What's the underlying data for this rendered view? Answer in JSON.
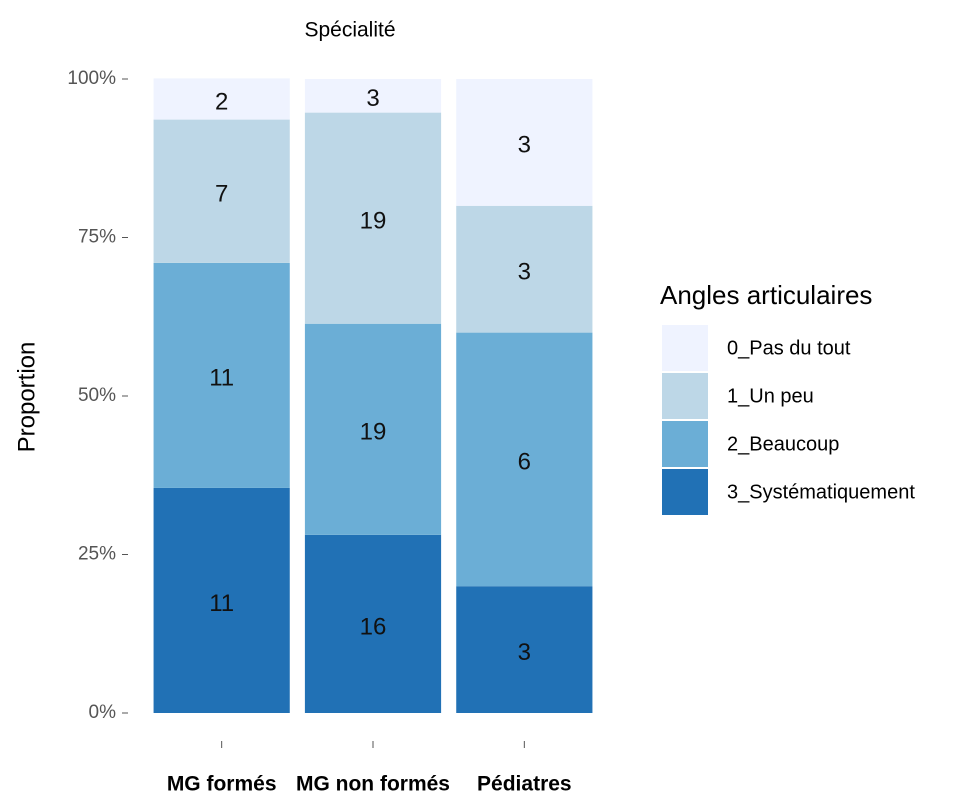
{
  "chart_data": {
    "type": "stacked-bar-100",
    "title": "Spécialité",
    "y_label": "Proportion",
    "legend_title": "Angles articulaires",
    "legend": "right",
    "categories": [
      "MG formés",
      "MG non formés",
      "Pédiatres"
    ],
    "series": [
      {
        "name": "0_Pas du tout",
        "color": "#eff3ff",
        "values": [
          6.5,
          5.3,
          20
        ],
        "counts": [
          2,
          3,
          3
        ]
      },
      {
        "name": "1_Un peu",
        "color": "#bdd7e7",
        "values": [
          22.6,
          33.3,
          20
        ],
        "counts": [
          7,
          19,
          3
        ]
      },
      {
        "name": "2_Beaucoup",
        "color": "#6baed6",
        "values": [
          35.5,
          33.3,
          40
        ],
        "counts": [
          11,
          19,
          6
        ]
      },
      {
        "name": "3_Systématiquement",
        "color": "#2171b5",
        "values": [
          35.5,
          28.1,
          20
        ],
        "counts": [
          11,
          16,
          3
        ]
      }
    ],
    "ylim": [
      0,
      100
    ],
    "yticks": [
      {
        "value": 0,
        "label": "0%"
      },
      {
        "value": 25,
        "label": "25%"
      },
      {
        "value": 50,
        "label": "50%"
      },
      {
        "value": 75,
        "label": "75%"
      },
      {
        "value": 100,
        "label": "100%"
      }
    ]
  }
}
